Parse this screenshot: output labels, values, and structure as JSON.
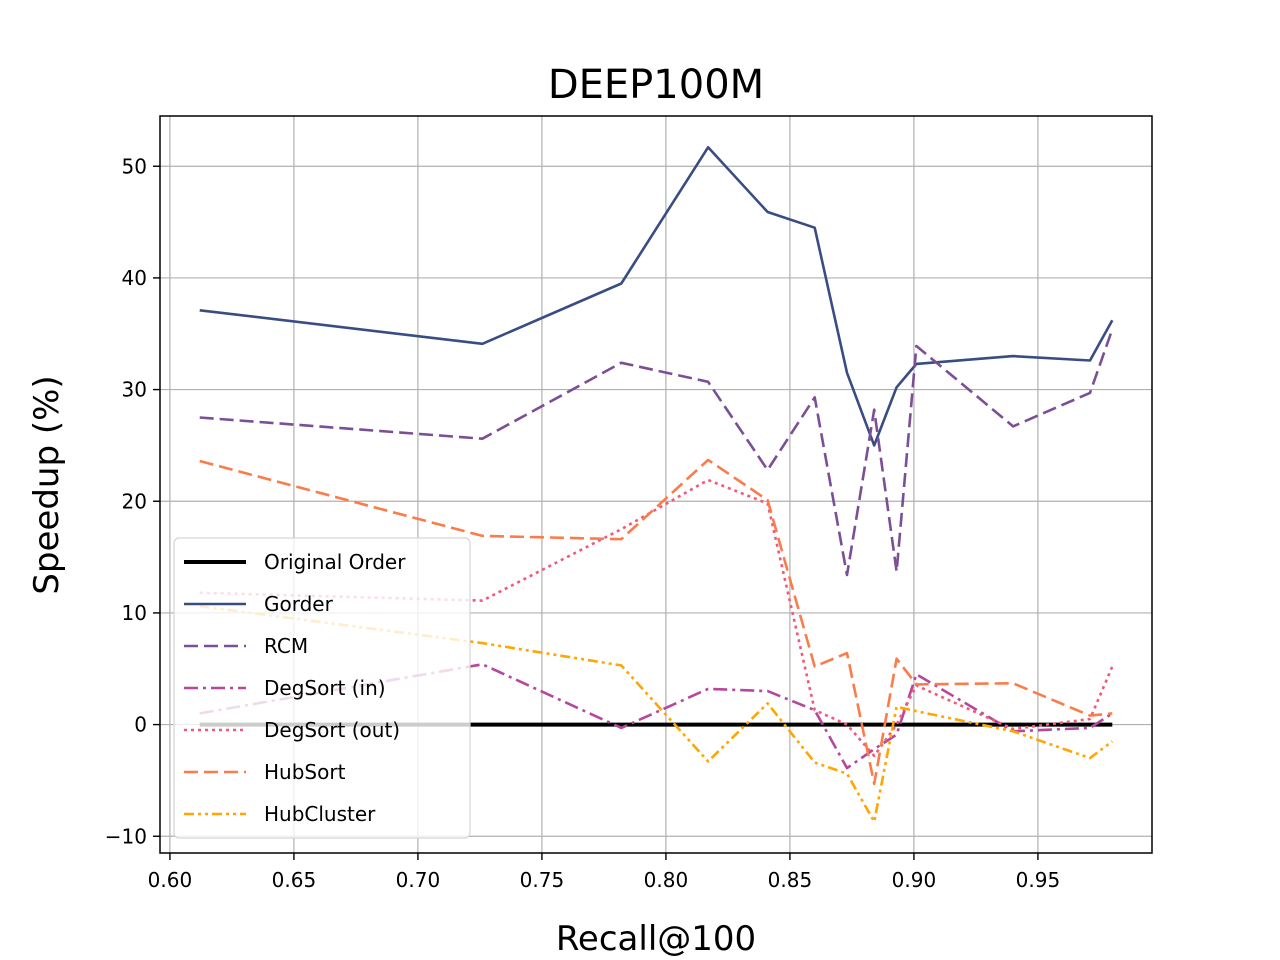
{
  "chart_data": {
    "type": "line",
    "title": "DEEP100M",
    "xlabel": "Recall@100",
    "ylabel": "Speedup (%)",
    "xlim": [
      0.596,
      0.996
    ],
    "ylim": [
      -11.5,
      54.5
    ],
    "xticks": [
      0.6,
      0.65,
      0.7,
      0.75,
      0.8,
      0.85,
      0.9,
      0.95
    ],
    "xtick_labels": [
      "0.60",
      "0.65",
      "0.70",
      "0.75",
      "0.80",
      "0.85",
      "0.90",
      "0.95"
    ],
    "yticks": [
      -10,
      0,
      10,
      20,
      30,
      40,
      50
    ],
    "ytick_labels": [
      "−10",
      "0",
      "10",
      "20",
      "30",
      "40",
      "50"
    ],
    "grid": true,
    "legend_position": "lower-left",
    "x": [
      0.612,
      0.726,
      0.782,
      0.817,
      0.841,
      0.86,
      0.873,
      0.884,
      0.893,
      0.901,
      0.94,
      0.971,
      0.98
    ],
    "series": [
      {
        "name": "Original Order",
        "color": "#000000",
        "dash": "solid",
        "width": 4,
        "values": [
          0,
          0,
          0,
          0,
          0,
          0,
          0,
          0,
          0,
          0,
          0,
          0,
          0
        ]
      },
      {
        "name": "Gorder",
        "color": "#3a4d82",
        "dash": "solid",
        "width": 2.6,
        "values": [
          37.1,
          34.1,
          39.5,
          51.7,
          45.9,
          44.5,
          31.5,
          25.0,
          30.2,
          32.3,
          33.0,
          32.6,
          36.2
        ]
      },
      {
        "name": "RCM",
        "color": "#7b4f95",
        "dash": "dashed",
        "width": 2.6,
        "values": [
          27.5,
          25.6,
          32.4,
          30.7,
          22.8,
          29.3,
          13.4,
          28.2,
          13.7,
          33.9,
          26.7,
          29.7,
          35.4
        ]
      },
      {
        "name": "DegSort (in)",
        "color": "#b5479c",
        "dash": "dashdot",
        "width": 2.6,
        "values": [
          1.0,
          5.4,
          -0.3,
          3.2,
          3.0,
          1.3,
          -3.9,
          -2.2,
          -0.9,
          4.5,
          -0.6,
          -0.3,
          1.0
        ]
      },
      {
        "name": "DegSort (out)",
        "color": "#ef5a7a",
        "dash": "dotted",
        "width": 2.6,
        "values": [
          11.8,
          11.1,
          17.5,
          21.9,
          19.8,
          1.3,
          0.0,
          -2.8,
          0.0,
          3.5,
          -0.4,
          0.5,
          5.2
        ]
      },
      {
        "name": "HubSort",
        "color": "#fa7c4b",
        "dash": "dashed",
        "width": 2.6,
        "values": [
          23.6,
          16.9,
          16.6,
          23.7,
          20.1,
          5.2,
          6.4,
          -5.3,
          5.9,
          3.6,
          3.7,
          0.8,
          1.0
        ]
      },
      {
        "name": "HubCluster",
        "color": "#ffa600",
        "dash": "dashdotdot",
        "width": 2.6,
        "values": [
          10.6,
          7.3,
          5.3,
          -3.3,
          1.9,
          -3.4,
          -4.4,
          -8.7,
          1.6,
          1.2,
          -0.6,
          -3.0,
          -1.5
        ]
      }
    ]
  }
}
